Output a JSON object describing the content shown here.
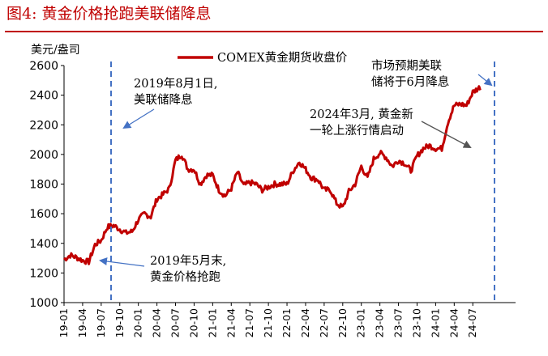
{
  "figure": {
    "title": "图4:   黄金价格抢跑美联储降息",
    "accent_color": "#c00000"
  },
  "chart_data": {
    "type": "line",
    "ylabel": "美元/盎司",
    "ylim": [
      1000,
      2600
    ],
    "yticks": [
      1000,
      1200,
      1400,
      1600,
      1800,
      2000,
      2200,
      2400,
      2600
    ],
    "xticks": [
      "19-01",
      "19-04",
      "19-07",
      "19-10",
      "20-01",
      "20-04",
      "20-07",
      "20-10",
      "21-01",
      "21-04",
      "21-07",
      "21-10",
      "22-01",
      "22-04",
      "22-07",
      "22-10",
      "23-01",
      "23-04",
      "23-07",
      "23-10",
      "24-01",
      "24-04",
      "24-07"
    ],
    "legend": {
      "position": "top-center"
    },
    "grid": false,
    "series": [
      {
        "name": "COMEX黄金期货收盘价",
        "color": "#c00000",
        "x": [
          "2019-01",
          "2019-02",
          "2019-03",
          "2019-04",
          "2019-05",
          "2019-06",
          "2019-07",
          "2019-08",
          "2019-09",
          "2019-10",
          "2019-11",
          "2019-12",
          "2020-01",
          "2020-02",
          "2020-03",
          "2020-04",
          "2020-05",
          "2020-06",
          "2020-07",
          "2020-08",
          "2020-09",
          "2020-10",
          "2020-11",
          "2020-12",
          "2021-01",
          "2021-02",
          "2021-03",
          "2021-04",
          "2021-05",
          "2021-06",
          "2021-07",
          "2021-08",
          "2021-09",
          "2021-10",
          "2021-11",
          "2021-12",
          "2022-01",
          "2022-02",
          "2022-03",
          "2022-04",
          "2022-05",
          "2022-06",
          "2022-07",
          "2022-08",
          "2022-09",
          "2022-10",
          "2022-11",
          "2022-12",
          "2023-01",
          "2023-02",
          "2023-03",
          "2023-04",
          "2023-05",
          "2023-06",
          "2023-07",
          "2023-08",
          "2023-09",
          "2023-10",
          "2023-11",
          "2023-12",
          "2024-01",
          "2024-02",
          "2024-03",
          "2024-04",
          "2024-05",
          "2024-06",
          "2024-07",
          "2024-08"
        ],
        "values": [
          1290,
          1320,
          1305,
          1285,
          1275,
          1390,
          1420,
          1510,
          1520,
          1495,
          1470,
          1480,
          1560,
          1600,
          1580,
          1700,
          1730,
          1770,
          1960,
          2000,
          1900,
          1900,
          1800,
          1860,
          1860,
          1760,
          1720,
          1770,
          1880,
          1790,
          1810,
          1800,
          1760,
          1780,
          1800,
          1800,
          1800,
          1890,
          1950,
          1900,
          1840,
          1830,
          1760,
          1760,
          1670,
          1640,
          1750,
          1800,
          1920,
          1840,
          1970,
          2010,
          1980,
          1920,
          1960,
          1940,
          1890,
          1990,
          2040,
          2060,
          2040,
          2040,
          2220,
          2330,
          2340,
          2330,
          2420,
          2450
        ]
      }
    ],
    "annotations": [
      {
        "lines": [
          "2019年8月1日,",
          "美联储降息"
        ]
      },
      {
        "lines": [
          "2019年5月末,",
          "黄金价格抢跑"
        ]
      },
      {
        "lines": [
          "2024年3月, 黄金新",
          "一轮上涨行情启动"
        ]
      },
      {
        "lines": [
          "市场预期美联",
          "储将于6月降息"
        ]
      }
    ]
  }
}
